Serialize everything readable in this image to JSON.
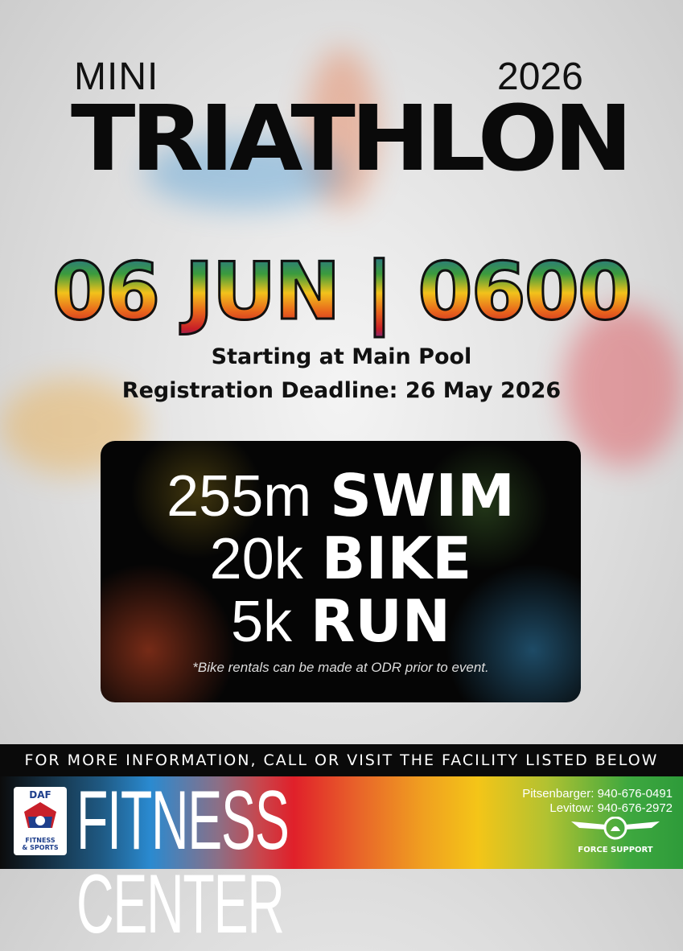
{
  "header": {
    "mini": "MINI",
    "year": "2026",
    "title": "TRIATHLON"
  },
  "event": {
    "date_time": "06 JUN | 0600",
    "location": "Starting at Main Pool",
    "deadline": "Registration Deadline: 26 May 2026"
  },
  "legs": [
    {
      "distance": "255m",
      "sport": "SWIM"
    },
    {
      "distance": "20k",
      "sport": "BIKE"
    },
    {
      "distance": "5k",
      "sport": "RUN"
    }
  ],
  "note": "*Bike rentals can be made at ODR prior to event.",
  "info_bar": "FOR MORE INFORMATION, CALL OR VISIT THE FACILITY LISTED BELOW",
  "footer": {
    "logo": {
      "top": "DAF",
      "bottom1": "FITNESS",
      "bottom2": "& SPORTS"
    },
    "facility": "FITNESS CENTER",
    "phones": [
      "Pitsenbarger: 940-676-0491",
      "Levitow: 940-676-2972"
    ],
    "force_support": "FORCE SUPPORT"
  }
}
